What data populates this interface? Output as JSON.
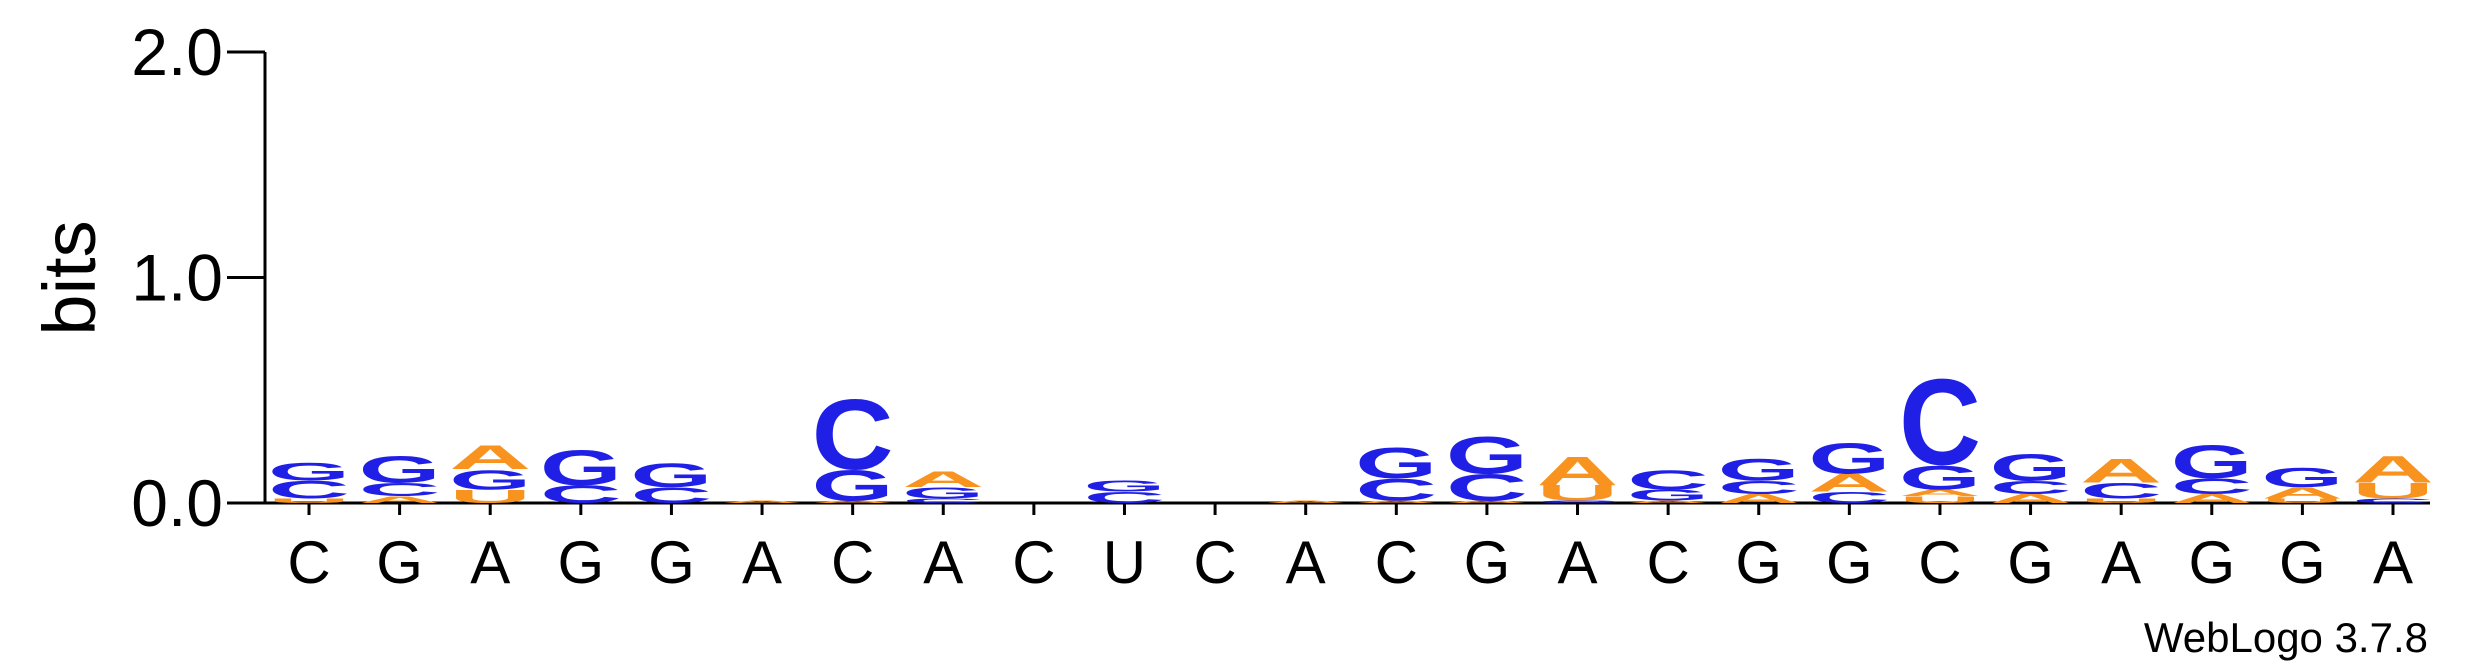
{
  "chart_data": {
    "type": "logo",
    "ylabel": "bits",
    "footer": "WebLogo 3.7.8",
    "ylim": [
      0,
      2
    ],
    "yticks": [
      {
        "value": 0,
        "label": "0.0"
      },
      {
        "value": 1,
        "label": "1.0"
      },
      {
        "value": 2,
        "label": "2.0"
      }
    ],
    "colors": {
      "A": "#f7931e",
      "U": "#f7931e",
      "C": "#1f1fe6",
      "G": "#1f1fe6"
    },
    "categories": [
      "C",
      "G",
      "A",
      "G",
      "G",
      "A",
      "C",
      "A",
      "C",
      "U",
      "C",
      "A",
      "C",
      "G",
      "A",
      "C",
      "G",
      "G",
      "C",
      "G",
      "A",
      "G",
      "G",
      "A"
    ],
    "stacks": [
      [
        {
          "letter": "U",
          "value": 0.02
        },
        {
          "letter": "C",
          "value": 0.08
        },
        {
          "letter": "G",
          "value": 0.08
        }
      ],
      [
        {
          "letter": "A",
          "value": 0.03
        },
        {
          "letter": "C",
          "value": 0.06
        },
        {
          "letter": "G",
          "value": 0.12
        }
      ],
      [
        {
          "letter": "U",
          "value": 0.06
        },
        {
          "letter": "G",
          "value": 0.09
        },
        {
          "letter": "A",
          "value": 0.11
        }
      ],
      [
        {
          "letter": "C",
          "value": 0.08
        },
        {
          "letter": "G",
          "value": 0.16
        }
      ],
      [
        {
          "letter": "C",
          "value": 0.07
        },
        {
          "letter": "G",
          "value": 0.11
        }
      ],
      [
        {
          "letter": "A",
          "value": 0.01
        }
      ],
      [
        {
          "letter": "A",
          "value": 0.01
        },
        {
          "letter": "G",
          "value": 0.14
        },
        {
          "letter": "C",
          "value": 0.32
        }
      ],
      [
        {
          "letter": "C",
          "value": 0.02
        },
        {
          "letter": "G",
          "value": 0.05
        },
        {
          "letter": "A",
          "value": 0.07
        }
      ],
      [],
      [
        {
          "letter": "C",
          "value": 0.05
        },
        {
          "letter": "G",
          "value": 0.05
        }
      ],
      [],
      [
        {
          "letter": "A",
          "value": 0.01
        }
      ],
      [
        {
          "letter": "A",
          "value": 0.01
        },
        {
          "letter": "C",
          "value": 0.1
        },
        {
          "letter": "G",
          "value": 0.14
        }
      ],
      [
        {
          "letter": "A",
          "value": 0.01
        },
        {
          "letter": "C",
          "value": 0.12
        },
        {
          "letter": "G",
          "value": 0.17
        }
      ],
      [
        {
          "letter": "C",
          "value": 0.01
        },
        {
          "letter": "U",
          "value": 0.07
        },
        {
          "letter": "A",
          "value": 0.13
        }
      ],
      [
        {
          "letter": "A",
          "value": 0.01
        },
        {
          "letter": "G",
          "value": 0.05
        },
        {
          "letter": "C",
          "value": 0.09
        }
      ],
      [
        {
          "letter": "A",
          "value": 0.04
        },
        {
          "letter": "C",
          "value": 0.06
        },
        {
          "letter": "G",
          "value": 0.1
        }
      ],
      [
        {
          "letter": "C",
          "value": 0.05
        },
        {
          "letter": "A",
          "value": 0.08
        },
        {
          "letter": "G",
          "value": 0.14
        }
      ],
      [
        {
          "letter": "U",
          "value": 0.03
        },
        {
          "letter": "A",
          "value": 0.03
        },
        {
          "letter": "G",
          "value": 0.11
        },
        {
          "letter": "C",
          "value": 0.39
        }
      ],
      [
        {
          "letter": "A",
          "value": 0.04
        },
        {
          "letter": "C",
          "value": 0.06
        },
        {
          "letter": "G",
          "value": 0.12
        }
      ],
      [
        {
          "letter": "U",
          "value": 0.02
        },
        {
          "letter": "C",
          "value": 0.07
        },
        {
          "letter": "A",
          "value": 0.11
        }
      ],
      [
        {
          "letter": "A",
          "value": 0.04
        },
        {
          "letter": "C",
          "value": 0.07
        },
        {
          "letter": "G",
          "value": 0.15
        }
      ],
      [
        {
          "letter": "U",
          "value": 0.02
        },
        {
          "letter": "A",
          "value": 0.05
        },
        {
          "letter": "G",
          "value": 0.09
        }
      ],
      [
        {
          "letter": "C",
          "value": 0.02
        },
        {
          "letter": "U",
          "value": 0.07
        },
        {
          "letter": "A",
          "value": 0.12
        }
      ]
    ]
  }
}
